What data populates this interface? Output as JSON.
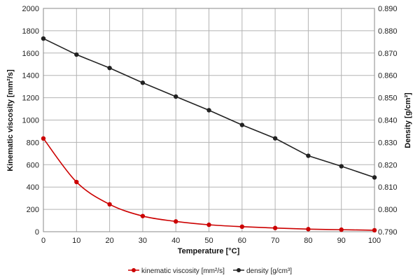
{
  "chart_data": {
    "type": "line",
    "x": [
      0,
      10,
      20,
      30,
      40,
      50,
      60,
      70,
      80,
      90,
      100
    ],
    "xlabel": "Temperature  [°C]",
    "xlim": [
      0,
      100
    ],
    "x_ticks": [
      "0",
      "10",
      "20",
      "30",
      "40",
      "50",
      "60",
      "70",
      "80",
      "90",
      "100"
    ],
    "y_left": {
      "label": "Kinematic viscosity  [mm²/s]",
      "lim": [
        0,
        2000
      ],
      "ticks": [
        "0",
        "200",
        "400",
        "600",
        "800",
        "1000",
        "1200",
        "1400",
        "1600",
        "1800",
        "2000"
      ]
    },
    "y_right": {
      "label": "Density  [g/cm³]",
      "lim": [
        0.79,
        0.89
      ],
      "ticks": [
        "0.790",
        "0.800",
        "0.810",
        "0.820",
        "0.830",
        "0.840",
        "0.850",
        "0.860",
        "0.870",
        "0.880",
        "0.890"
      ]
    },
    "series": [
      {
        "name": "kinematic viscosity [mm²/s]",
        "axis": "left",
        "color": "#cc0000",
        "values": [
          835,
          445,
          245,
          140,
          92,
          62,
          45,
          33,
          23,
          18,
          13
        ]
      },
      {
        "name": "density [g/cm³]",
        "axis": "right",
        "color": "#222222",
        "values": [
          0.8765,
          0.8693,
          0.8633,
          0.8567,
          0.8505,
          0.8444,
          0.8378,
          0.8318,
          0.824,
          0.8193,
          0.8143
        ]
      }
    ],
    "grid": true,
    "legend": "bottom"
  }
}
